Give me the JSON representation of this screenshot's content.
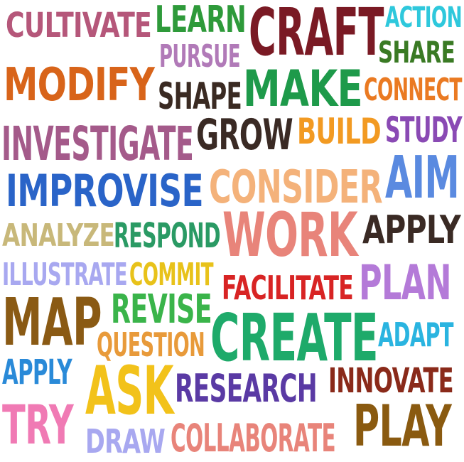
{
  "words": [
    {
      "key": "cultivate",
      "text": "CULTIVATE",
      "color": "#b5577a"
    },
    {
      "key": "learn",
      "text": "LEARN",
      "color": "#2e9a3a"
    },
    {
      "key": "craft",
      "text": "CRAFT",
      "color": "#7a1a24"
    },
    {
      "key": "action",
      "text": "ACTION",
      "color": "#2ec8dc"
    },
    {
      "key": "pursue",
      "text": "PURSUE",
      "color": "#b17ab8"
    },
    {
      "key": "share",
      "text": "SHARE",
      "color": "#3a7a24"
    },
    {
      "key": "modify",
      "text": "MODIFY",
      "color": "#d8641a"
    },
    {
      "key": "shape",
      "text": "SHAPE",
      "color": "#3a2a22"
    },
    {
      "key": "make",
      "text": "MAKE",
      "color": "#1e9a4a"
    },
    {
      "key": "connect",
      "text": "CONNECT",
      "color": "#ea7a22"
    },
    {
      "key": "investigate",
      "text": "INVESTIGATE",
      "color": "#a45a8a"
    },
    {
      "key": "grow",
      "text": "GROW",
      "color": "#3a2a24"
    },
    {
      "key": "build",
      "text": "BUILD",
      "color": "#f29a22"
    },
    {
      "key": "study",
      "text": "STUDY",
      "color": "#8a4ab4"
    },
    {
      "key": "improvise",
      "text": "IMPROVISE",
      "color": "#2a64c8"
    },
    {
      "key": "consider",
      "text": "CONSIDER",
      "color": "#f4b27a"
    },
    {
      "key": "aim",
      "text": "AIM",
      "color": "#5a8ae0"
    },
    {
      "key": "analyze",
      "text": "ANALYZE",
      "color": "#c8b87a"
    },
    {
      "key": "respond",
      "text": "RESPOND",
      "color": "#2a9a64"
    },
    {
      "key": "work",
      "text": "WORK",
      "color": "#e8847a"
    },
    {
      "key": "apply-top",
      "text": "APPLY",
      "color": "#3a2a24"
    },
    {
      "key": "illustrate",
      "text": "ILLUSTRATE",
      "color": "#a8a8f0"
    },
    {
      "key": "commit",
      "text": "COMMIT",
      "color": "#e8c21a"
    },
    {
      "key": "facilitate",
      "text": "FACILITATE",
      "color": "#d82424"
    },
    {
      "key": "plan",
      "text": "PLAN",
      "color": "#b47ad8"
    },
    {
      "key": "map",
      "text": "MAP",
      "color": "#8a5a14"
    },
    {
      "key": "revise",
      "text": "REVISE",
      "color": "#3ab44a"
    },
    {
      "key": "create",
      "text": "CREATE",
      "color": "#1eaa6a"
    },
    {
      "key": "question",
      "text": "QUESTION",
      "color": "#e89a3a"
    },
    {
      "key": "adapt",
      "text": "ADAPT",
      "color": "#2ab4e0"
    },
    {
      "key": "apply-left",
      "text": "APPLY",
      "color": "#2a8ad8"
    },
    {
      "key": "ask",
      "text": "ASK",
      "color": "#f2c21a"
    },
    {
      "key": "research",
      "text": "RESEARCH",
      "color": "#5a3aa4"
    },
    {
      "key": "innovate",
      "text": "INNOVATE",
      "color": "#8a2a1a"
    },
    {
      "key": "try",
      "text": "TRY",
      "color": "#f07ab4"
    },
    {
      "key": "play",
      "text": "PLAY",
      "color": "#8a5a10"
    },
    {
      "key": "draw",
      "text": "DRAW",
      "color": "#a8a8f0"
    },
    {
      "key": "collaborate",
      "text": "COLLABORATE",
      "color": "#e8847a"
    }
  ]
}
